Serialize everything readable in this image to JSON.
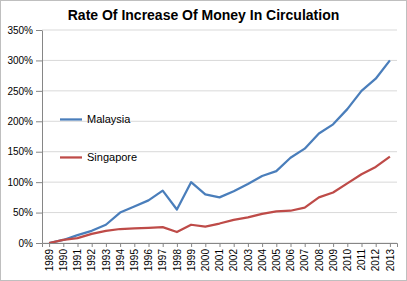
{
  "chart_data": {
    "type": "line",
    "title": "Rate Of Increase Of Money In Circulation",
    "categories": [
      "1989",
      "1990",
      "1991",
      "1992",
      "1993",
      "1994",
      "1995",
      "1996",
      "1997",
      "1998",
      "1999",
      "2000",
      "2001",
      "2002",
      "2003",
      "2004",
      "2005",
      "2006",
      "2007",
      "2008",
      "2009",
      "2010",
      "2011",
      "2012",
      "2013"
    ],
    "series": [
      {
        "name": "Malaysia",
        "color": "#4a7ebb",
        "values": [
          0,
          5,
          13,
          20,
          30,
          50,
          60,
          70,
          86,
          55,
          100,
          80,
          75,
          85,
          97,
          110,
          118,
          140,
          155,
          180,
          195,
          220,
          250,
          270,
          300
        ]
      },
      {
        "name": "Singapore",
        "color": "#be4b48",
        "values": [
          0,
          5,
          8,
          15,
          20,
          23,
          24,
          25,
          26,
          18,
          30,
          27,
          32,
          38,
          42,
          48,
          52,
          53,
          58,
          75,
          83,
          98,
          113,
          125,
          142
        ]
      }
    ],
    "ylim": [
      0,
      350
    ],
    "yticks": [
      {
        "value": 0,
        "label": "0%"
      },
      {
        "value": 50,
        "label": "50%"
      },
      {
        "value": 100,
        "label": "100%"
      },
      {
        "value": 150,
        "label": "150%"
      },
      {
        "value": 200,
        "label": "200%"
      },
      {
        "value": 250,
        "label": "250%"
      },
      {
        "value": 300,
        "label": "300%"
      },
      {
        "value": 350,
        "label": "350%"
      }
    ],
    "grid": true,
    "legend": "left"
  }
}
